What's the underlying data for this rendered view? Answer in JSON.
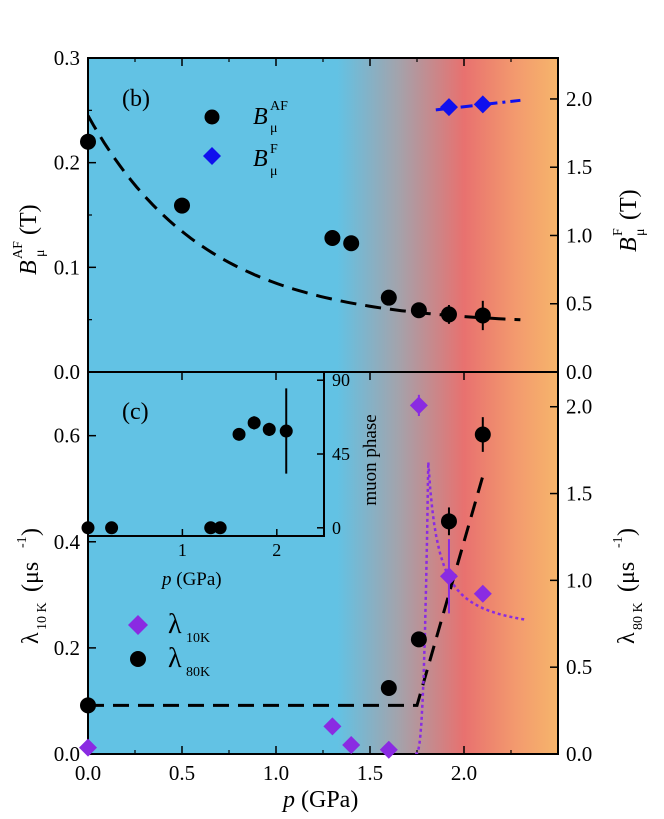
{
  "chart_data": [
    {
      "panel": "b",
      "type": "scatter",
      "panel_label": "(b)",
      "xlim": [
        0,
        2.5
      ],
      "left_axis": {
        "label_main": "B",
        "label_sup": "AF",
        "label_sub": "μ",
        "unit": "(T)",
        "ylim": [
          0,
          0.3
        ],
        "ticks": [
          "0.0",
          "0.1",
          "0.2",
          "0.3"
        ]
      },
      "right_axis": {
        "label_main": "B",
        "label_sup": "F",
        "label_sub": "μ",
        "unit": "(T)",
        "ylim": [
          0,
          2.3
        ],
        "ticks": [
          "0.0",
          "0.5",
          "1.0",
          "1.5",
          "2.0"
        ]
      },
      "series": [
        {
          "name": "B_μ^AF",
          "legend_main": "B",
          "legend_sup": "AF",
          "legend_sub": "μ",
          "axis": "left",
          "marker": "circle",
          "color": "#000000",
          "x": [
            0.0,
            0.5,
            1.3,
            1.4,
            1.6,
            1.76,
            1.92,
            2.1
          ],
          "y": [
            0.22,
            0.159,
            0.128,
            0.123,
            0.071,
            0.059,
            0.055,
            0.054
          ],
          "err": [
            0.005,
            0.006,
            0.006,
            0.006,
            0.007,
            0.007,
            0.009,
            0.014
          ]
        },
        {
          "name": "B_μ^F",
          "legend_main": "B",
          "legend_sup": "F",
          "legend_sub": "μ",
          "axis": "right",
          "marker": "diamond",
          "color": "#1010ee",
          "x": [
            1.92,
            2.1
          ],
          "y": [
            1.94,
            1.96
          ],
          "err": [
            0.02,
            0.02
          ]
        }
      ],
      "fits": [
        {
          "name": "AF fit",
          "axis": "left",
          "style": "dashed",
          "color": "#000000",
          "type": "exp_decay",
          "amplitude": 0.2,
          "tau": 0.62,
          "offset": 0.045,
          "x_range": [
            0,
            2.3
          ]
        },
        {
          "name": "F fit",
          "axis": "right",
          "style": "dash-dot",
          "color": "#1010ee",
          "x": [
            1.85,
            2.3
          ],
          "y": [
            1.92,
            1.99
          ]
        }
      ]
    },
    {
      "panel": "c",
      "type": "scatter",
      "xlim": [
        0,
        2.5
      ],
      "xlabel_main": "p",
      "xlabel_unit": "(GPa)",
      "x_ticks": [
        "0.0",
        "0.5",
        "1.0",
        "1.5",
        "2.0"
      ],
      "left_axis": {
        "label_main": "λ",
        "label_sub": "10 K",
        "unit_open": "(μs",
        "unit_sup": "-1",
        "unit_close": ")",
        "ylim": [
          0,
          0.72
        ],
        "ticks": [
          "0.0",
          "0.2",
          "0.4",
          "0.6"
        ]
      },
      "right_axis": {
        "label_main": "λ",
        "label_sub": "80 K",
        "unit_open": "(μs",
        "unit_sup": "-1",
        "unit_close": ")",
        "ylim": [
          0,
          2.2
        ],
        "ticks": [
          "0.0",
          "0.5",
          "1.0",
          "1.5",
          "2.0"
        ]
      },
      "series": [
        {
          "name": "λ_10K",
          "legend_main": "λ",
          "legend_sub": "10K",
          "axis": "left",
          "marker": "diamond",
          "color": "#8a2be2",
          "x": [
            0.0,
            1.3,
            1.4,
            1.6,
            1.76,
            1.92,
            2.1
          ],
          "y": [
            0.012,
            0.052,
            0.017,
            0.008,
            0.657,
            0.335,
            0.302
          ],
          "err": [
            0,
            0,
            0,
            0,
            0.02,
            0.07,
            0
          ]
        },
        {
          "name": "λ_80K",
          "legend_main": "λ",
          "legend_sub": "80K",
          "axis": "right",
          "marker": "circle",
          "color": "#000000",
          "x": [
            0.0,
            1.6,
            1.76,
            1.92,
            2.1
          ],
          "y": [
            0.28,
            0.38,
            0.66,
            1.34,
            1.84
          ],
          "err": [
            0,
            0.04,
            0.04,
            0.08,
            0.1
          ]
        }
      ],
      "fits": [
        {
          "name": "80K fit",
          "axis": "right",
          "style": "dashed",
          "color": "#000000",
          "x": [
            0,
            1.75,
            1.75,
            2.1
          ],
          "y": [
            0.28,
            0.28,
            0.28,
            1.6
          ]
        },
        {
          "name": "10K critical",
          "axis": "left",
          "style": "dotted",
          "color": "#8a2be2",
          "type": "critical",
          "x_rise": [
            1.74,
            1.81
          ],
          "y_rise": [
            0,
            0.55
          ],
          "x_decay": [
            1.81,
            2.33
          ],
          "y_decay": [
            0.55,
            0.22
          ]
        }
      ],
      "inset": {
        "panel_label": "(c)",
        "xlabel_main": "p",
        "xlabel_unit": "(GPa)",
        "ylabel": "muon phase",
        "xlim": [
          0,
          2.5
        ],
        "ylim": [
          -5,
          95
        ],
        "x_ticks": [
          "1",
          "2"
        ],
        "y_ticks": [
          "0",
          "45",
          "90"
        ],
        "x": [
          0.0,
          0.25,
          1.3,
          1.4,
          1.6,
          1.76,
          1.92,
          2.1
        ],
        "y": [
          0,
          0,
          0,
          0,
          57,
          64,
          60,
          59
        ],
        "err": [
          0,
          0,
          0,
          0,
          3,
          4,
          4,
          26
        ]
      }
    }
  ]
}
